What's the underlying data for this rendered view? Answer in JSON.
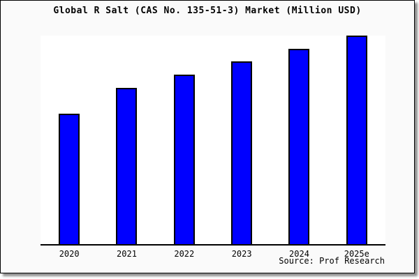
{
  "chart_data": {
    "type": "bar",
    "title": "Global R Salt (CAS No. 135-51-3) Market (Million USD)",
    "categories": [
      "2020",
      "2021",
      "2022",
      "2023",
      "2024",
      "2025e"
    ],
    "values": [
      62.5,
      74.9,
      81.3,
      87.6,
      93.6,
      100.0
    ],
    "value_scale_note": "y-axis is unlabeled; values are relative bar heights with 2025e = 100",
    "xlabel": "",
    "ylabel": "",
    "ylim": [
      0,
      100
    ],
    "y_axis_visible": false,
    "gridlines": false,
    "legend": false,
    "bar_color": "#0000ff",
    "bar_border_color": "#000000",
    "canvas_background_color": "#fafafa",
    "plot_background_color": "#ffffff"
  },
  "footer": {
    "source": "Source: Prof Research"
  }
}
